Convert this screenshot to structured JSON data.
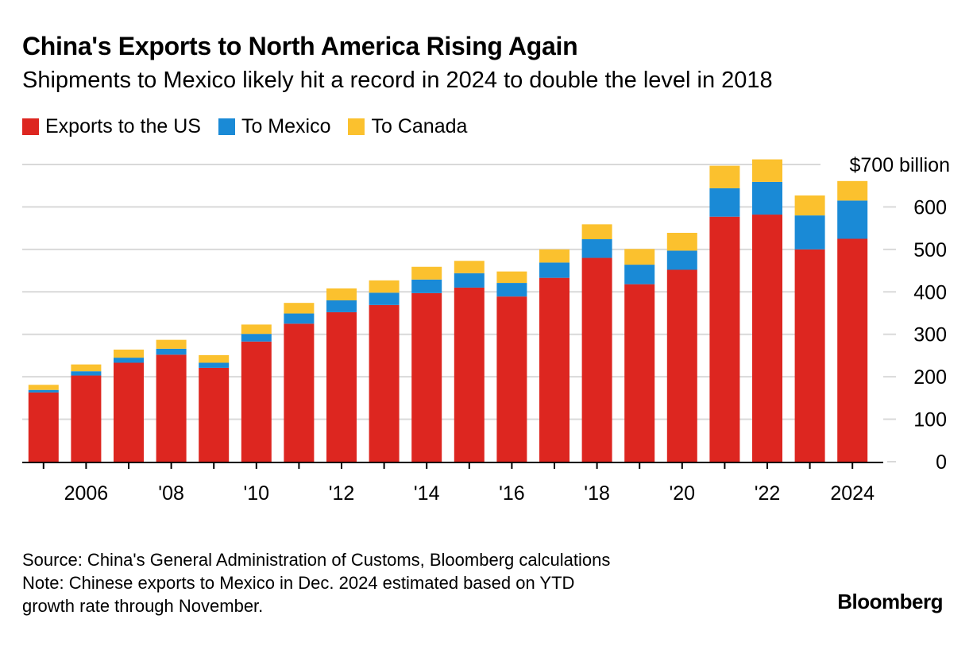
{
  "chart_data": {
    "type": "bar",
    "stacked": true,
    "title": "China's Exports to North America Rising Again",
    "subtitle": "Shipments to Mexico likely hit a record in 2024 to double the level in 2018",
    "categories": [
      2005,
      2006,
      2007,
      2008,
      2009,
      2010,
      2011,
      2012,
      2013,
      2014,
      2015,
      2016,
      2017,
      2018,
      2019,
      2020,
      2021,
      2022,
      2023,
      2024
    ],
    "series": [
      {
        "name": "Exports to the US",
        "color": "#dd2620",
        "values": [
          163,
          203,
          233,
          252,
          221,
          283,
          325,
          352,
          369,
          397,
          410,
          389,
          433,
          480,
          418,
          452,
          577,
          582,
          500,
          525
        ]
      },
      {
        "name": "To Mexico",
        "color": "#1a8ad6",
        "values": [
          6,
          10,
          12,
          14,
          12,
          18,
          24,
          28,
          29,
          32,
          34,
          32,
          36,
          44,
          46,
          45,
          67,
          77,
          80,
          90
        ]
      },
      {
        "name": "To Canada",
        "color": "#fbc12e",
        "values": [
          12,
          16,
          19,
          21,
          18,
          22,
          25,
          28,
          29,
          30,
          29,
          27,
          31,
          35,
          37,
          42,
          53,
          53,
          47,
          46
        ]
      }
    ],
    "y_ticks": [
      0,
      100,
      200,
      300,
      400,
      500,
      600
    ],
    "y_top_label": "$700 billion",
    "ylim": [
      0,
      700
    ],
    "x_tick_labels": [
      {
        "year": 2006,
        "label": "2006"
      },
      {
        "year": 2008,
        "label": "'08"
      },
      {
        "year": 2010,
        "label": "'10"
      },
      {
        "year": 2012,
        "label": "'12"
      },
      {
        "year": 2014,
        "label": "'14"
      },
      {
        "year": 2016,
        "label": "'16"
      },
      {
        "year": 2018,
        "label": "'18"
      },
      {
        "year": 2020,
        "label": "'20"
      },
      {
        "year": 2022,
        "label": "'22"
      },
      {
        "year": 2024,
        "label": "2024"
      }
    ],
    "legend": [
      "Exports to the US",
      "To Mexico",
      "To Canada"
    ]
  },
  "footer": {
    "source": "Source: China's General Administration of Customs, Bloomberg calculations",
    "note_line1": "Note: Chinese exports to Mexico in Dec. 2024 estimated based on YTD",
    "note_line2": "growth rate through November."
  },
  "brand": "Bloomberg"
}
